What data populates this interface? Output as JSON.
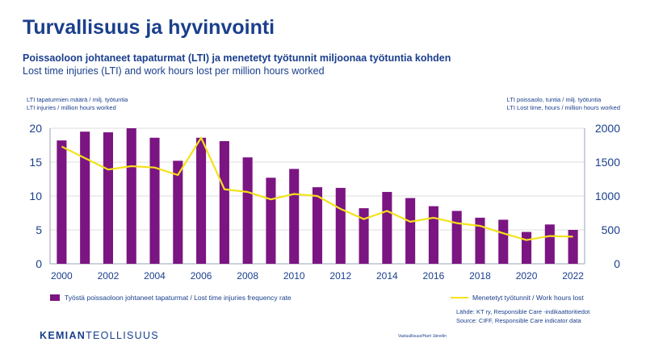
{
  "title": "Turvallisuus ja hyvinvointi",
  "subtitle_fi": "Poissaoloon johtaneet tapaturmat (LTI) ja menetetyt työtunnit miljoonaa työtuntia kohden",
  "subtitle_en": "Lost time injuries (LTI) and work hours lost per million hours worked",
  "left_axis_title": [
    "LTI tapaturmien määrä / milj. työtuntia",
    "LTI injuries / million hours worked"
  ],
  "right_axis_title": [
    "LTI poissaolo, tuntia / milj. työtuntia",
    "LTI Lost time, hours / million hours worked"
  ],
  "legend": {
    "bars": "Työstä poissaoloon johtaneet tapaturmat / Lost time injuries frequency rate",
    "line": "Menetetyt työtunnit / Work hours lost"
  },
  "source": [
    "Lähde: KT ry, Responsible Care -indikaattoritiedot",
    "Source: CIFF, Responsible Care indicator data"
  ],
  "logo": {
    "bold": "KEMIAN",
    "light": "TEOLLISUUS"
  },
  "footer_note": "Vastuullisuus/Harri Järvelin",
  "colors": {
    "bars": "#7b1582",
    "line": "#f3e21a",
    "text": "#1a3f8c",
    "grid": "#d0d0d0"
  },
  "chart_data": {
    "type": "bar",
    "categories": [
      2000,
      2001,
      2002,
      2003,
      2004,
      2005,
      2006,
      2007,
      2008,
      2009,
      2010,
      2011,
      2012,
      2013,
      2014,
      2015,
      2016,
      2017,
      2018,
      2019,
      2020,
      2021,
      2022
    ],
    "x_tick_labels": [
      "2000",
      "2002",
      "2004",
      "2006",
      "2008",
      "2010",
      "2012",
      "2014",
      "2016",
      "2018",
      "2020",
      "2022"
    ],
    "y_left": {
      "ylim": [
        0,
        20
      ],
      "ticks": [
        "0",
        "5",
        "10",
        "15",
        "20"
      ]
    },
    "y_right": {
      "ylim": [
        0,
        2000
      ],
      "ticks": [
        "0",
        "500",
        "1000",
        "1500",
        "2000"
      ]
    },
    "grid": true,
    "legend_position": "bottom",
    "series": [
      {
        "name": "Työstä poissaoloon johtaneet tapaturmat / Lost time injuries frequency rate",
        "type": "bar",
        "axis": "left",
        "values": [
          18.2,
          19.5,
          19.4,
          20.0,
          18.6,
          15.2,
          18.6,
          18.1,
          15.7,
          12.7,
          14.0,
          11.3,
          11.2,
          8.2,
          10.6,
          9.7,
          8.5,
          7.8,
          6.8,
          6.5,
          4.7,
          5.8,
          5.0
        ]
      },
      {
        "name": "Menetetyt työtunnit / Work hours lost",
        "type": "line",
        "axis": "right",
        "values": [
          1730,
          1560,
          1390,
          1440,
          1420,
          1310,
          1860,
          1100,
          1060,
          950,
          1030,
          1000,
          810,
          660,
          780,
          620,
          680,
          600,
          560,
          450,
          350,
          410,
          400
        ]
      }
    ]
  }
}
